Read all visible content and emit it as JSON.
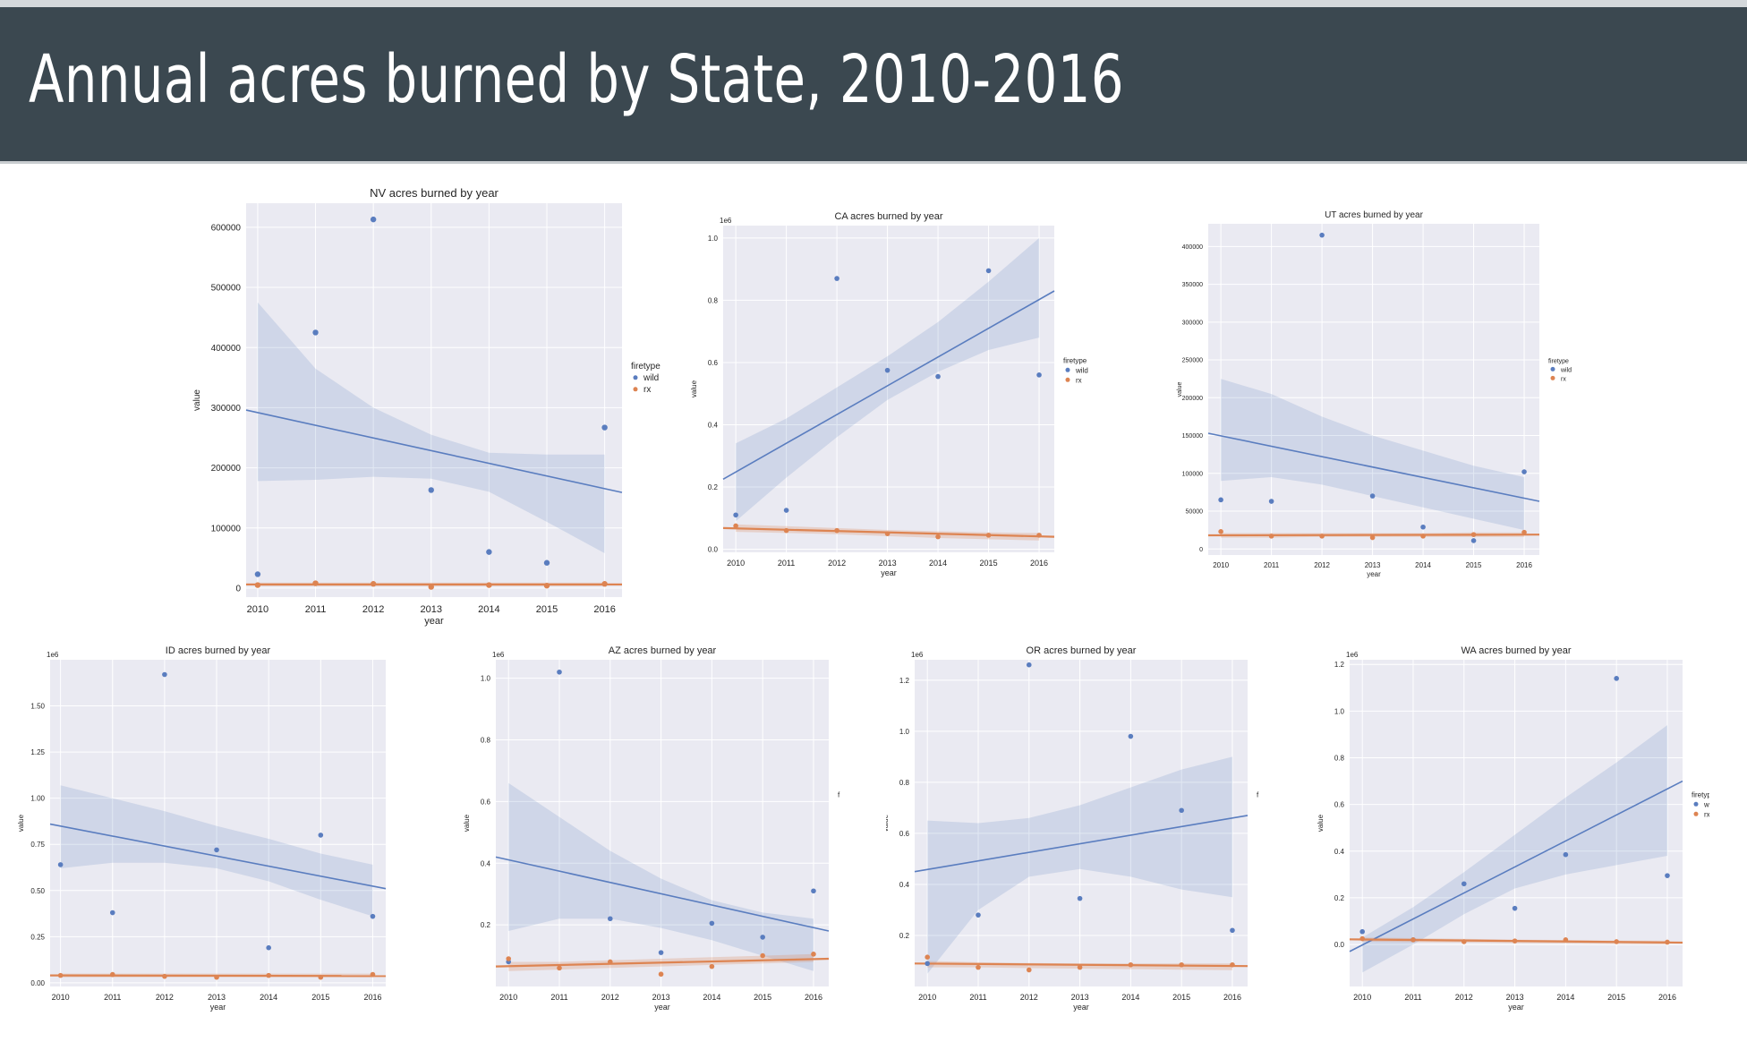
{
  "page": {
    "title": "Annual acres burned by State, 2010-2016"
  },
  "colors": {
    "wild": "#5a7dbf",
    "rx": "#dd8452",
    "plot_bg": "#eaeaf2",
    "grid": "#ffffff"
  },
  "chart_data": [
    {
      "id": "nv",
      "type": "scatter",
      "title": "NV acres burned by year",
      "xlabel": "year",
      "ylabel": "value",
      "x": [
        2010,
        2011,
        2012,
        2013,
        2014,
        2015,
        2016
      ],
      "xlim": [
        2009.8,
        2016.3
      ],
      "ylim": [
        -15000,
        640000
      ],
      "yticks": [
        0,
        100000,
        200000,
        300000,
        400000,
        500000,
        600000
      ],
      "ytick_labels": [
        "0",
        "100000",
        "200000",
        "300000",
        "400000",
        "500000",
        "600000"
      ],
      "offset_label": "",
      "legend": {
        "title": "firetype",
        "labels": [
          "wild",
          "rx"
        ],
        "placement": "right"
      },
      "series": [
        {
          "name": "wild",
          "values": [
            23000,
            425000,
            613000,
            163000,
            60000,
            42000,
            267000
          ],
          "fit": [
            296000,
            159000
          ],
          "band_upper": [
            475000,
            365000,
            300000,
            255000,
            225000,
            222000,
            222000
          ],
          "band_lower": [
            178000,
            180000,
            185000,
            182000,
            160000,
            110000,
            58000
          ]
        },
        {
          "name": "rx",
          "values": [
            5000,
            8000,
            7000,
            2000,
            5000,
            4000,
            7000
          ],
          "fit": [
            6000,
            6000
          ],
          "band_upper": [
            9000,
            9000,
            9000,
            9000,
            9000,
            9000,
            9000
          ],
          "band_lower": [
            3000,
            3000,
            3000,
            3000,
            3000,
            3000,
            3000
          ]
        }
      ]
    },
    {
      "id": "ca",
      "type": "scatter",
      "title": "CA acres burned by year",
      "xlabel": "year",
      "ylabel": "value",
      "x": [
        2010,
        2011,
        2012,
        2013,
        2014,
        2015,
        2016
      ],
      "xlim": [
        2009.75,
        2016.3
      ],
      "ylim": [
        -0.01,
        1.04
      ],
      "yticks": [
        0,
        0.2,
        0.4,
        0.6,
        0.8,
        1.0
      ],
      "ytick_labels": [
        "0.0",
        "0.2",
        "0.4",
        "0.6",
        "0.8",
        "1.0"
      ],
      "offset_label": "1e6",
      "legend": {
        "title": "firetype",
        "labels": [
          "wild",
          "rx"
        ],
        "placement": "right"
      },
      "series": [
        {
          "name": "wild",
          "values": [
            0.11,
            0.125,
            0.87,
            0.575,
            0.555,
            0.895,
            0.56
          ],
          "fit": [
            0.225,
            0.83
          ],
          "band_upper": [
            0.34,
            0.42,
            0.52,
            0.62,
            0.73,
            0.86,
            1.0
          ],
          "band_lower": [
            0.09,
            0.23,
            0.36,
            0.48,
            0.57,
            0.64,
            0.68
          ]
        },
        {
          "name": "rx",
          "values": [
            0.075,
            0.06,
            0.06,
            0.05,
            0.04,
            0.045,
            0.045
          ],
          "fit": [
            0.068,
            0.04
          ],
          "band_upper": [
            0.08,
            0.074,
            0.068,
            0.062,
            0.058,
            0.054,
            0.052
          ],
          "band_lower": [
            0.056,
            0.052,
            0.048,
            0.042,
            0.036,
            0.032,
            0.028
          ]
        }
      ]
    },
    {
      "id": "ut",
      "type": "scatter",
      "title": "UT acres burned by year",
      "xlabel": "year",
      "ylabel": "value",
      "x": [
        2010,
        2011,
        2012,
        2013,
        2014,
        2015,
        2016
      ],
      "xlim": [
        2009.75,
        2016.3
      ],
      "ylim": [
        -8000,
        430000
      ],
      "yticks": [
        0,
        50000,
        100000,
        150000,
        200000,
        250000,
        300000,
        350000,
        400000
      ],
      "ytick_labels": [
        "0",
        "50000",
        "100000",
        "150000",
        "200000",
        "250000",
        "300000",
        "350000",
        "400000"
      ],
      "offset_label": "",
      "legend": {
        "title": "firetype",
        "labels": [
          "wild",
          "rx"
        ],
        "placement": "right"
      },
      "series": [
        {
          "name": "wild",
          "values": [
            65000,
            63000,
            415000,
            70000,
            29000,
            11000,
            102000
          ],
          "fit": [
            153000,
            63000
          ],
          "band_upper": [
            225000,
            205000,
            175000,
            150000,
            130000,
            110000,
            95000
          ],
          "band_lower": [
            90000,
            95000,
            85000,
            70000,
            55000,
            40000,
            25000
          ]
        },
        {
          "name": "rx",
          "values": [
            23000,
            17000,
            17000,
            15000,
            17000,
            19000,
            22000
          ],
          "fit": [
            18000,
            19000
          ],
          "band_upper": [
            21000,
            21000,
            21000,
            21000,
            21000,
            22000,
            22000
          ],
          "band_lower": [
            15000,
            15000,
            16000,
            16000,
            16000,
            16000,
            16000
          ]
        }
      ]
    },
    {
      "id": "id",
      "type": "scatter",
      "title": "ID acres burned by year",
      "xlabel": "year",
      "ylabel": "value",
      "x": [
        2010,
        2011,
        2012,
        2013,
        2014,
        2015,
        2016
      ],
      "xlim": [
        2009.8,
        2016.25
      ],
      "ylim": [
        -0.02,
        1.75
      ],
      "yticks": [
        0,
        0.25,
        0.5,
        0.75,
        1.0,
        1.25,
        1.5
      ],
      "ytick_labels": [
        "0.00",
        "0.25",
        "0.50",
        "0.75",
        "1.00",
        "1.25",
        "1.50"
      ],
      "offset_label": "1e6",
      "legend": null,
      "series": [
        {
          "name": "wild",
          "values": [
            0.64,
            0.38,
            1.67,
            0.72,
            0.19,
            0.8,
            0.36
          ],
          "fit": [
            0.86,
            0.51
          ],
          "band_upper": [
            1.07,
            1.0,
            0.93,
            0.85,
            0.78,
            0.7,
            0.64
          ],
          "band_lower": [
            0.62,
            0.65,
            0.65,
            0.62,
            0.55,
            0.45,
            0.36
          ]
        },
        {
          "name": "rx",
          "values": [
            0.04,
            0.045,
            0.035,
            0.03,
            0.04,
            0.03,
            0.045
          ],
          "fit": [
            0.04,
            0.037
          ],
          "band_upper": [
            0.05,
            0.05,
            0.05,
            0.05,
            0.05,
            0.05,
            0.05
          ],
          "band_lower": [
            0.03,
            0.03,
            0.03,
            0.03,
            0.03,
            0.03,
            0.03
          ]
        }
      ]
    },
    {
      "id": "az",
      "type": "scatter",
      "title": "AZ acres burned by year",
      "xlabel": "year",
      "ylabel": "value",
      "x": [
        2010,
        2011,
        2012,
        2013,
        2014,
        2015,
        2016
      ],
      "xlim": [
        2009.75,
        2016.3
      ],
      "ylim": [
        0,
        1.06
      ],
      "yticks": [
        0.2,
        0.4,
        0.6,
        0.8,
        1.0
      ],
      "ytick_labels": [
        "0.2",
        "0.4",
        "0.6",
        "0.8",
        "1.0"
      ],
      "offset_label": "1e6",
      "legend": {
        "title": "f",
        "labels": [
          "",
          ""
        ],
        "placement": "right"
      },
      "series": [
        {
          "name": "wild",
          "values": [
            0.08,
            1.02,
            0.22,
            0.11,
            0.205,
            0.16,
            0.31
          ],
          "fit": [
            0.42,
            0.18
          ],
          "band_upper": [
            0.66,
            0.55,
            0.44,
            0.35,
            0.28,
            0.24,
            0.22
          ],
          "band_lower": [
            0.18,
            0.22,
            0.22,
            0.19,
            0.15,
            0.1,
            0.05
          ]
        },
        {
          "name": "rx",
          "values": [
            0.09,
            0.06,
            0.08,
            0.04,
            0.065,
            0.1,
            0.105
          ],
          "fit": [
            0.065,
            0.09
          ],
          "band_upper": [
            0.08,
            0.08,
            0.085,
            0.09,
            0.095,
            0.1,
            0.105
          ],
          "band_lower": [
            0.05,
            0.055,
            0.06,
            0.065,
            0.07,
            0.075,
            0.08
          ]
        }
      ]
    },
    {
      "id": "or",
      "type": "scatter",
      "title": "OR acres burned by year",
      "xlabel": "year",
      "ylabel": "value",
      "x": [
        2010,
        2011,
        2012,
        2013,
        2014,
        2015,
        2016
      ],
      "xlim": [
        2009.75,
        2016.3
      ],
      "ylim": [
        0,
        1.28
      ],
      "yticks": [
        0.2,
        0.4,
        0.6,
        0.8,
        1.0,
        1.2
      ],
      "ytick_labels": [
        "0.2",
        "0.4",
        "0.6",
        "0.8",
        "1.0",
        "1.2"
      ],
      "offset_label": "1e6",
      "legend": {
        "title": "f",
        "labels": [
          "",
          ""
        ],
        "placement": "right"
      },
      "series": [
        {
          "name": "wild",
          "values": [
            0.09,
            0.28,
            1.26,
            0.345,
            0.98,
            0.69,
            0.22
          ],
          "fit": [
            0.45,
            0.67
          ],
          "band_upper": [
            0.65,
            0.64,
            0.66,
            0.71,
            0.78,
            0.85,
            0.9
          ],
          "band_lower": [
            0.05,
            0.3,
            0.43,
            0.46,
            0.43,
            0.38,
            0.35
          ]
        },
        {
          "name": "rx",
          "values": [
            0.115,
            0.075,
            0.065,
            0.075,
            0.085,
            0.085,
            0.085
          ],
          "fit": [
            0.09,
            0.08
          ],
          "band_upper": [
            0.1,
            0.095,
            0.092,
            0.09,
            0.09,
            0.09,
            0.09
          ],
          "band_lower": [
            0.075,
            0.075,
            0.072,
            0.07,
            0.068,
            0.066,
            0.064
          ]
        }
      ]
    },
    {
      "id": "wa",
      "type": "scatter",
      "title": "WA acres burned by year",
      "xlabel": "year",
      "ylabel": "value",
      "x": [
        2010,
        2011,
        2012,
        2013,
        2014,
        2015,
        2016
      ],
      "xlim": [
        2009.75,
        2016.3
      ],
      "ylim": [
        -0.18,
        1.22
      ],
      "yticks": [
        0,
        0.2,
        0.4,
        0.6,
        0.8,
        1.0,
        1.2
      ],
      "ytick_labels": [
        "0.0",
        "0.2",
        "0.4",
        "0.6",
        "0.8",
        "1.0",
        "1.2"
      ],
      "offset_label": "1e6",
      "legend": {
        "title": "firetype",
        "labels": [
          "wild",
          "rx"
        ],
        "placement": "right"
      },
      "series": [
        {
          "name": "wild",
          "values": [
            0.055,
            0.02,
            0.26,
            0.155,
            0.385,
            1.14,
            0.295
          ],
          "fit": [
            -0.03,
            0.7
          ],
          "band_upper": [
            0.03,
            0.16,
            0.31,
            0.47,
            0.63,
            0.78,
            0.94
          ],
          "band_lower": [
            -0.12,
            0.0,
            0.13,
            0.24,
            0.3,
            0.34,
            0.38
          ]
        },
        {
          "name": "rx",
          "values": [
            0.025,
            0.02,
            0.012,
            0.015,
            0.02,
            0.012,
            0.01
          ],
          "fit": [
            0.022,
            0.008
          ],
          "band_upper": [
            0.03,
            0.027,
            0.024,
            0.021,
            0.019,
            0.017,
            0.016
          ],
          "band_lower": [
            0.012,
            0.01,
            0.008,
            0.006,
            0.004,
            0.002,
            0.0
          ]
        }
      ]
    }
  ]
}
